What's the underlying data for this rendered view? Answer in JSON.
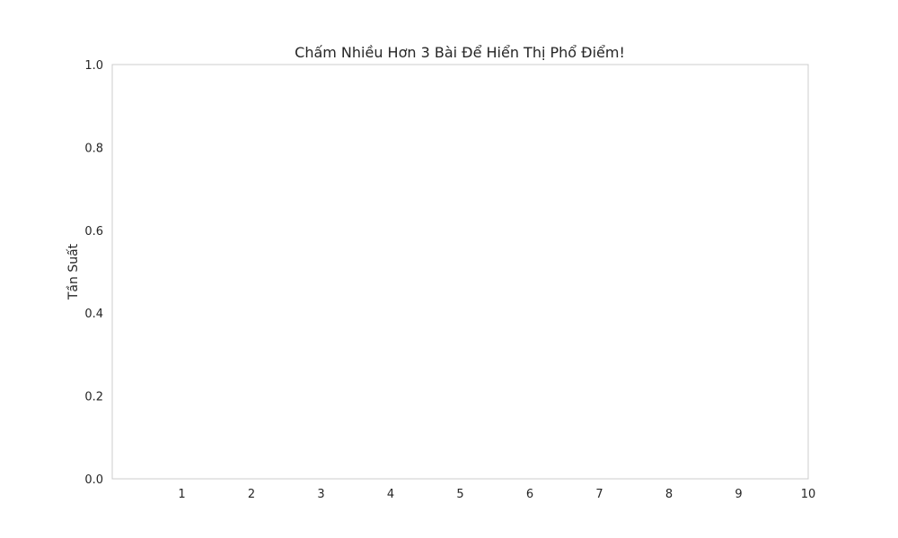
{
  "chart_data": {
    "type": "bar",
    "title": "Chấm Nhiều Hơn 3 Bài Để Hiển Thị Phổ Điểm!",
    "xlabel": "",
    "ylabel": "Tần Suất",
    "x_ticks": [
      "1",
      "2",
      "3",
      "4",
      "5",
      "6",
      "7",
      "8",
      "9",
      "10"
    ],
    "y_ticks": [
      "0.0",
      "0.2",
      "0.4",
      "0.6",
      "0.8",
      "1.0"
    ],
    "xlim": [
      0,
      10
    ],
    "ylim": [
      0,
      1
    ],
    "grid": false,
    "series": []
  },
  "colors": {
    "spine": "#cccccc",
    "text": "#262626",
    "background": "#ffffff"
  }
}
